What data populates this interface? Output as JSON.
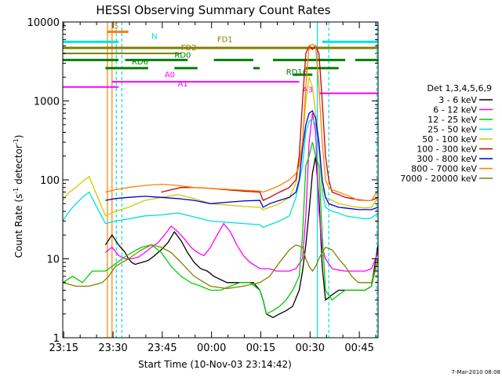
{
  "chart_data": {
    "type": "line",
    "title": "HESSI Observing Summary Count Rates",
    "xlabel": "Start Time (10-Nov-03 23:14:42)",
    "ylabel": "Count Rate (s",
    "ylabel_sup1": "-1",
    "ylabel_mid": " detector",
    "ylabel_sup2": "-1",
    "ylabel_end": ")",
    "y_scale": "log",
    "ylim": [
      1,
      10000
    ],
    "xlim_minutes": [
      0,
      96
    ],
    "x_tick_labels": [
      "23:15",
      "23:30",
      "23:45",
      "00:00",
      "00:15",
      "00:30",
      "00:45"
    ],
    "x_tick_minutes": [
      0.3,
      15.3,
      30.3,
      45.3,
      60.3,
      75.3,
      90.3
    ],
    "y_tick_labels": [
      "1",
      "10",
      "100",
      "1000",
      "10000"
    ],
    "y_tick_values": [
      1,
      10,
      100,
      1000,
      10000
    ],
    "legend": {
      "position": "right",
      "header": "Det 1,3,4,5,6,9",
      "entries": [
        "3 - 6 keV",
        "6 - 12 keV",
        "12 - 25 keV",
        "25 - 50 keV",
        "50 - 100 keV",
        "100 - 300 keV",
        "300 - 800 keV",
        "800 - 7000 keV",
        "7000 - 20000 keV"
      ],
      "colors": [
        "#000000",
        "#ff00ff",
        "#00cc00",
        "#00e0e0",
        "#cccc00",
        "#cc0000",
        "#0000cc",
        "#ff8000",
        "#808000"
      ]
    },
    "series": [
      {
        "name": "3 - 6 keV",
        "color": "#000000",
        "x": [
          13,
          15,
          17,
          19,
          20,
          21,
          22,
          24,
          26,
          28,
          30,
          32,
          34,
          36,
          38,
          40,
          42,
          44,
          46,
          50,
          54,
          58,
          60,
          61,
          62,
          64,
          66,
          68,
          70,
          72,
          73,
          74,
          75,
          76,
          77,
          78,
          79,
          80,
          82,
          84,
          86,
          88,
          90,
          92,
          94,
          96
        ],
        "y": [
          15,
          20,
          15,
          12,
          10,
          9,
          8.5,
          9,
          9.5,
          11,
          13,
          16,
          22,
          17,
          12,
          9,
          7.5,
          7,
          6,
          5,
          5,
          5,
          4,
          3,
          2,
          1.8,
          2,
          2.2,
          2.5,
          4,
          7,
          15,
          40,
          120,
          200,
          60,
          8,
          3,
          3.5,
          4,
          4,
          4,
          4,
          4,
          4.5,
          15
        ]
      },
      {
        "name": "6 - 12 keV",
        "color": "#ff00ff",
        "x": [
          13,
          15,
          17,
          19,
          21,
          23,
          25,
          27,
          29,
          31,
          33,
          35,
          37,
          39,
          41,
          43,
          45,
          47,
          49,
          51,
          53,
          55,
          57,
          59,
          60,
          61,
          63,
          65,
          67,
          69,
          71,
          73,
          74,
          75,
          76,
          77,
          78,
          79,
          80,
          82,
          84,
          86,
          88,
          90,
          92,
          94,
          96
        ],
        "y": [
          12,
          14,
          11,
          10,
          10,
          10.5,
          12,
          14,
          16,
          20,
          26,
          22,
          18,
          14,
          12,
          11,
          14,
          20,
          28,
          22,
          15,
          11,
          9,
          8,
          7.5,
          7.5,
          7.5,
          7,
          7,
          7,
          7.5,
          10,
          35,
          300,
          700,
          400,
          40,
          14,
          10,
          7.5,
          7.2,
          7,
          7,
          7,
          7,
          7.5,
          12
        ]
      },
      {
        "name": "12 - 25 keV",
        "color": "#00cc00",
        "x": [
          0,
          3,
          6,
          9,
          13,
          15,
          18,
          21,
          24,
          27,
          30,
          33,
          36,
          39,
          42,
          45,
          48,
          51,
          54,
          57,
          60,
          61,
          62,
          64,
          66,
          68,
          70,
          72,
          73,
          74,
          75,
          76,
          77,
          78,
          79,
          80,
          82,
          84,
          86,
          88,
          90,
          92,
          94,
          96
        ],
        "y": [
          5,
          6,
          5,
          7,
          7,
          8,
          10,
          12,
          14,
          15,
          12,
          8,
          6,
          5,
          4.5,
          4,
          4,
          4.5,
          5,
          5,
          4,
          3,
          2,
          2.2,
          2.5,
          3,
          4,
          6,
          20,
          150,
          200,
          300,
          200,
          150,
          20,
          4,
          3,
          3.5,
          4,
          4,
          4,
          4,
          4.5,
          10
        ]
      },
      {
        "name": "25 - 50 keV",
        "color": "#00e0e0",
        "x": [
          0,
          2,
          4,
          6,
          8,
          13,
          16,
          20,
          25,
          30,
          35,
          40,
          45,
          50,
          55,
          60,
          61,
          63,
          66,
          69,
          71,
          73,
          74,
          75,
          76,
          77,
          78,
          79,
          80,
          82,
          84,
          86,
          88,
          90,
          92,
          94,
          96
        ],
        "y": [
          30,
          40,
          50,
          60,
          70,
          28,
          30,
          32,
          35,
          36,
          38,
          34,
          30,
          29,
          28,
          27,
          25,
          27,
          30,
          35,
          60,
          150,
          400,
          550,
          600,
          500,
          250,
          70,
          45,
          40,
          38,
          35,
          34,
          33,
          32,
          33,
          38
        ]
      },
      {
        "name": "50 - 100 keV",
        "color": "#cccc00",
        "x": [
          0,
          2,
          4,
          6,
          8,
          13,
          16,
          20,
          25,
          30,
          35,
          40,
          45,
          50,
          55,
          60,
          61,
          63,
          66,
          69,
          71,
          73,
          74,
          75,
          76,
          77,
          78,
          79,
          80,
          82,
          84,
          86,
          88,
          90,
          92,
          94,
          96
        ],
        "y": [
          55,
          70,
          80,
          95,
          110,
          35,
          40,
          45,
          55,
          60,
          65,
          58,
          50,
          48,
          46,
          45,
          42,
          45,
          50,
          60,
          90,
          300,
          1000,
          2000,
          1500,
          700,
          300,
          80,
          60,
          55,
          50,
          48,
          46,
          45,
          44,
          45,
          60
        ]
      },
      {
        "name": "100 - 300 keV",
        "color": "#cc0000",
        "x": [
          30,
          33,
          36,
          40,
          45,
          50,
          55,
          60,
          61,
          63,
          66,
          69,
          71,
          72,
          73,
          74,
          75,
          76,
          77,
          78,
          79,
          80,
          81,
          82,
          84,
          86,
          88,
          90,
          92,
          94,
          96
        ],
        "y": [
          70,
          75,
          80,
          80,
          78,
          75,
          72,
          70,
          55,
          60,
          70,
          80,
          100,
          200,
          1000,
          4000,
          5000,
          4500,
          5000,
          4000,
          1000,
          200,
          100,
          70,
          65,
          60,
          58,
          56,
          55,
          55,
          60
        ]
      },
      {
        "name": "300 - 800 keV",
        "color": "#0000cc",
        "x": [
          13,
          16,
          20,
          25,
          30,
          35,
          40,
          45,
          50,
          55,
          60,
          61,
          63,
          66,
          69,
          71,
          72,
          73,
          74,
          75,
          76,
          77,
          78,
          79,
          80,
          81,
          82,
          84,
          86,
          88,
          90,
          92,
          94,
          96
        ],
        "y": [
          55,
          58,
          60,
          62,
          60,
          58,
          55,
          50,
          52,
          54,
          55,
          45,
          50,
          55,
          60,
          70,
          100,
          250,
          500,
          700,
          750,
          600,
          300,
          100,
          60,
          50,
          48,
          45,
          44,
          43,
          42,
          42,
          42,
          45
        ]
      },
      {
        "name": "800 - 7000 keV",
        "color": "#ff8000",
        "x": [
          13,
          16,
          20,
          25,
          30,
          35,
          40,
          45,
          50,
          55,
          60,
          61,
          63,
          66,
          69,
          71,
          72,
          73,
          74,
          75,
          76,
          77,
          78,
          79,
          80,
          81,
          82,
          84,
          86,
          88,
          90,
          92,
          94,
          96
        ],
        "y": [
          70,
          75,
          80,
          85,
          88,
          85,
          80,
          78,
          76,
          74,
          72,
          70,
          75,
          85,
          100,
          120,
          150,
          300,
          1500,
          5000,
          5200,
          5000,
          1500,
          300,
          100,
          80,
          75,
          70,
          65,
          60,
          55,
          55,
          55,
          75
        ]
      },
      {
        "name": "7000 - 20000 keV",
        "color": "#808000",
        "x": [
          0,
          4,
          8,
          12,
          14,
          16,
          20,
          24,
          27,
          30,
          33,
          36,
          40,
          45,
          50,
          55,
          60,
          63,
          66,
          69,
          71,
          73,
          74,
          75,
          76,
          77,
          78,
          79,
          80,
          82,
          84,
          86,
          88,
          90,
          92,
          94,
          96
        ],
        "y": [
          5,
          4.5,
          4.5,
          5,
          6,
          8,
          10,
          13,
          15,
          14,
          12,
          9,
          6,
          4.5,
          4.2,
          4.5,
          5,
          6,
          9,
          13,
          15,
          14,
          10,
          8,
          7,
          8,
          10,
          12,
          14,
          13,
          10,
          8,
          6,
          5,
          5,
          5,
          10
        ]
      }
    ],
    "markers": {
      "labels": [
        "S",
        "N",
        "FD1",
        "FD2",
        "RD0",
        "RD6",
        "RD16",
        "A0",
        "A1",
        "A3"
      ],
      "colors": {
        "S": "#ff8000",
        "N": "#00e0e0",
        "FD": "#808000",
        "RD": "#008000",
        "A": "#ff00ff"
      }
    },
    "footer": "7-Mar-2010 08:08"
  },
  "colors": {
    "axis": "#000000",
    "saa_line": "#ff8000",
    "night_line": "#00e0e0"
  }
}
